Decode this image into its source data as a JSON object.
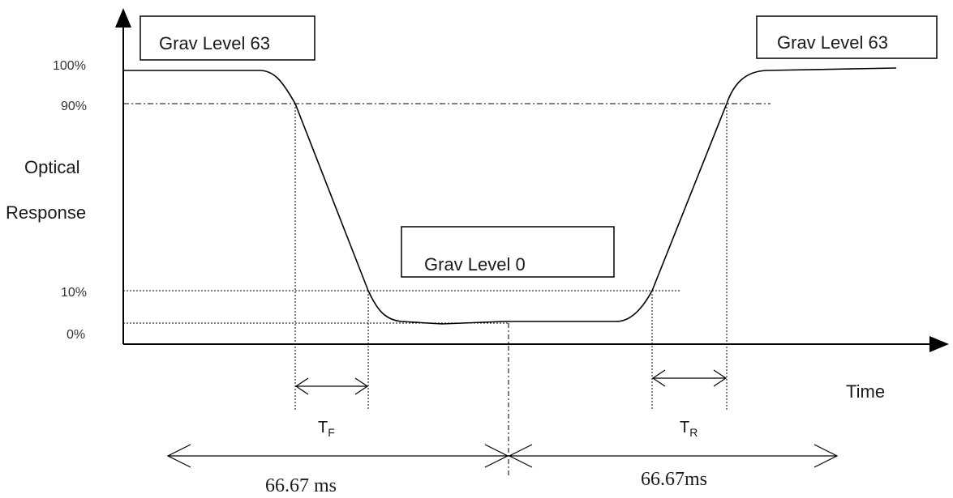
{
  "y_axis": {
    "title_line1": "Optical",
    "title_line2": "Response",
    "ticks": [
      "100%",
      "90%",
      "10%",
      "0%"
    ]
  },
  "x_axis": {
    "title": "Time"
  },
  "labels": {
    "start_level": "Grav Level 63",
    "mid_level": "Grav Level 0",
    "end_level": "Grav Level 63"
  },
  "intervals": {
    "fall": {
      "main": "T",
      "sub": "F"
    },
    "rise": {
      "main": "T",
      "sub": "R"
    },
    "first_period": "66.67 ms",
    "second_period": "66.67ms"
  }
}
